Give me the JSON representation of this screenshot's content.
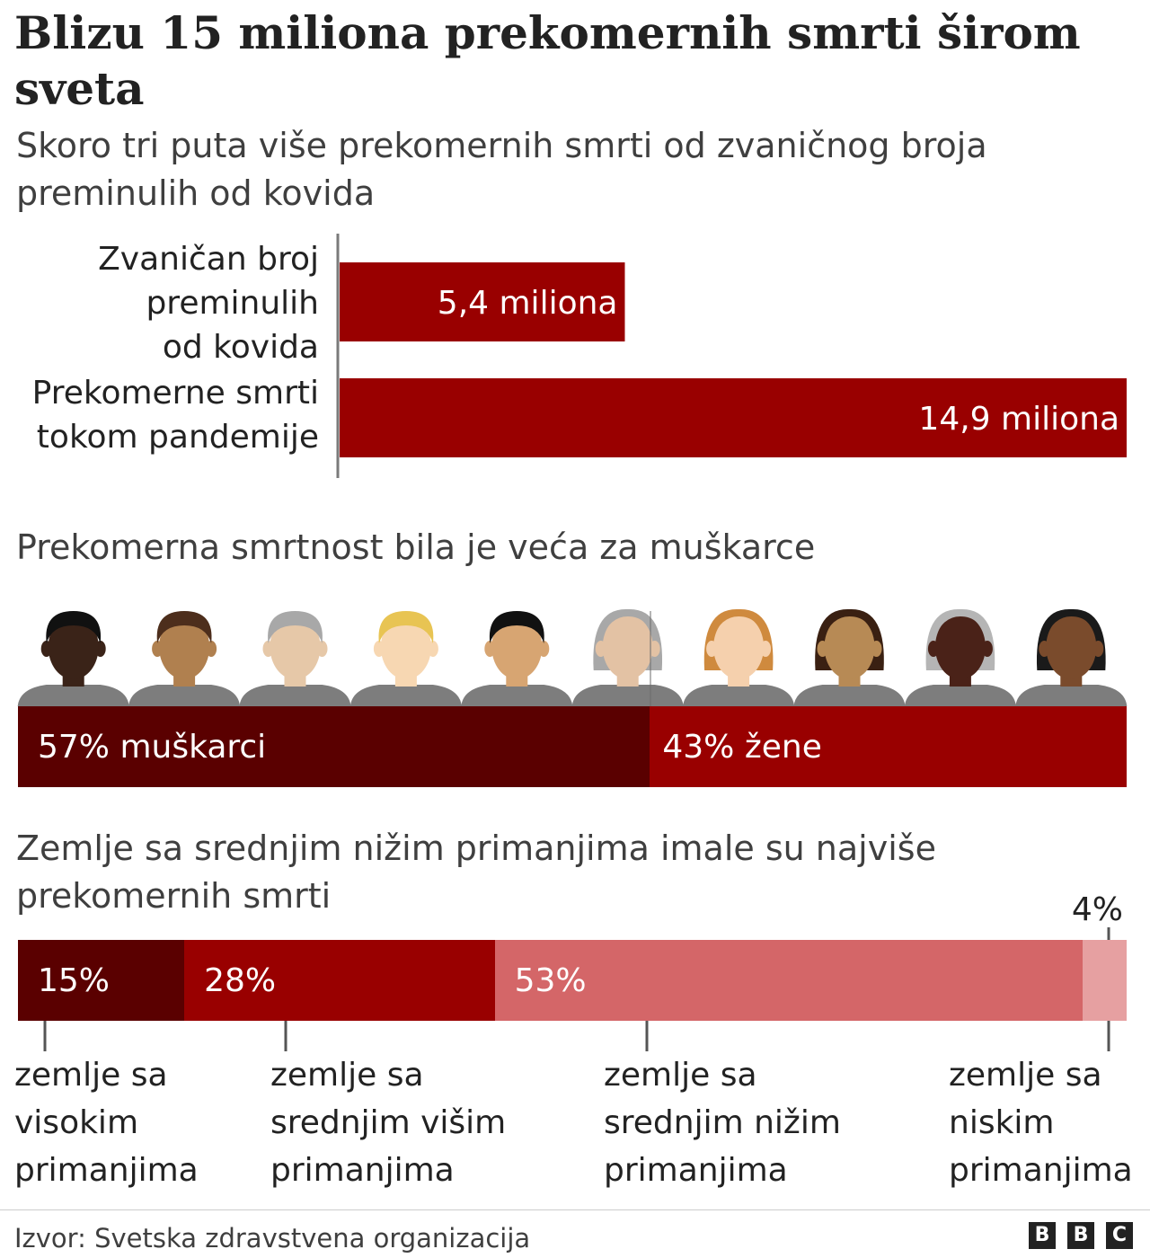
{
  "title": "Blizu 15 miliona prekomernih smrti širom sveta",
  "chart_data": [
    {
      "type": "bar",
      "orientation": "horizontal",
      "title": "Skoro tri puta više prekomernih smrti od zvaničnog broja preminulih od kovida",
      "categories": [
        "Zvaničan broj preminulih od kovida",
        "Prekomerne smrti tokom pandemije"
      ],
      "category_lines": [
        [
          "Zvaničan broj",
          "preminulih",
          "od kovida"
        ],
        [
          "Prekomerne smrti",
          "tokom pandemije"
        ]
      ],
      "values": [
        5.4,
        14.9
      ],
      "value_labels": [
        "5,4 miliona",
        "14,9 miliona"
      ],
      "xlim": [
        0,
        14.9
      ],
      "color": "#990000"
    },
    {
      "type": "bar",
      "stacked": true,
      "title": "Prekomerna smrtnost bila je veća za muškarce",
      "categories": [
        "muškarci",
        "žene"
      ],
      "values": [
        57,
        43
      ],
      "value_labels": [
        "57% muškarci",
        "43% žene"
      ],
      "colors": [
        "#5a0000",
        "#990000"
      ]
    },
    {
      "type": "bar",
      "stacked": true,
      "title": "Zemlje sa srednjim nižim primanjima imale su najviše prekomernih smrti",
      "categories": [
        "zemlje sa visokim primanjima",
        "zemlje sa srednjim višim primanjima",
        "zemlje sa srednjim nižim primanjima",
        "zemlje sa niskim primanjima"
      ],
      "category_lines": [
        [
          "zemlje sa",
          "visokim",
          "primanjima"
        ],
        [
          "zemlje sa",
          "srednjim višim",
          "primanjima"
        ],
        [
          "zemlje sa",
          "srednjim nižim",
          "primanjima"
        ],
        [
          "zemlje sa",
          "niskim",
          "primanjima"
        ]
      ],
      "values": [
        15,
        28,
        53,
        4
      ],
      "value_labels": [
        "15%",
        "28%",
        "53%",
        "4%"
      ],
      "colors": [
        "#5a0000",
        "#990000",
        "#d46668",
        "#e6a0a1"
      ]
    }
  ],
  "people_colors": {
    "skin": [
      "#3a2318",
      "#b0804f",
      "#e6c8a8",
      "#f7d7b2",
      "#d7a572",
      "#e3c2a4",
      "#f5d0ad",
      "#b78a55",
      "#4a2218",
      "#7a4b2c"
    ],
    "hair": [
      "#111111",
      "#4d2e1c",
      "#a8a8a8",
      "#e8c453",
      "#111111",
      "#a8a8a8",
      "#cf8a3e",
      "#3a2012",
      "#b5b5b5",
      "#1a1a1a"
    ],
    "shirt": "#7d7d7d"
  },
  "footer": {
    "source": "Izvor: Svetska zdravstvena organizacija",
    "logo_letters": [
      "B",
      "B",
      "C"
    ]
  }
}
